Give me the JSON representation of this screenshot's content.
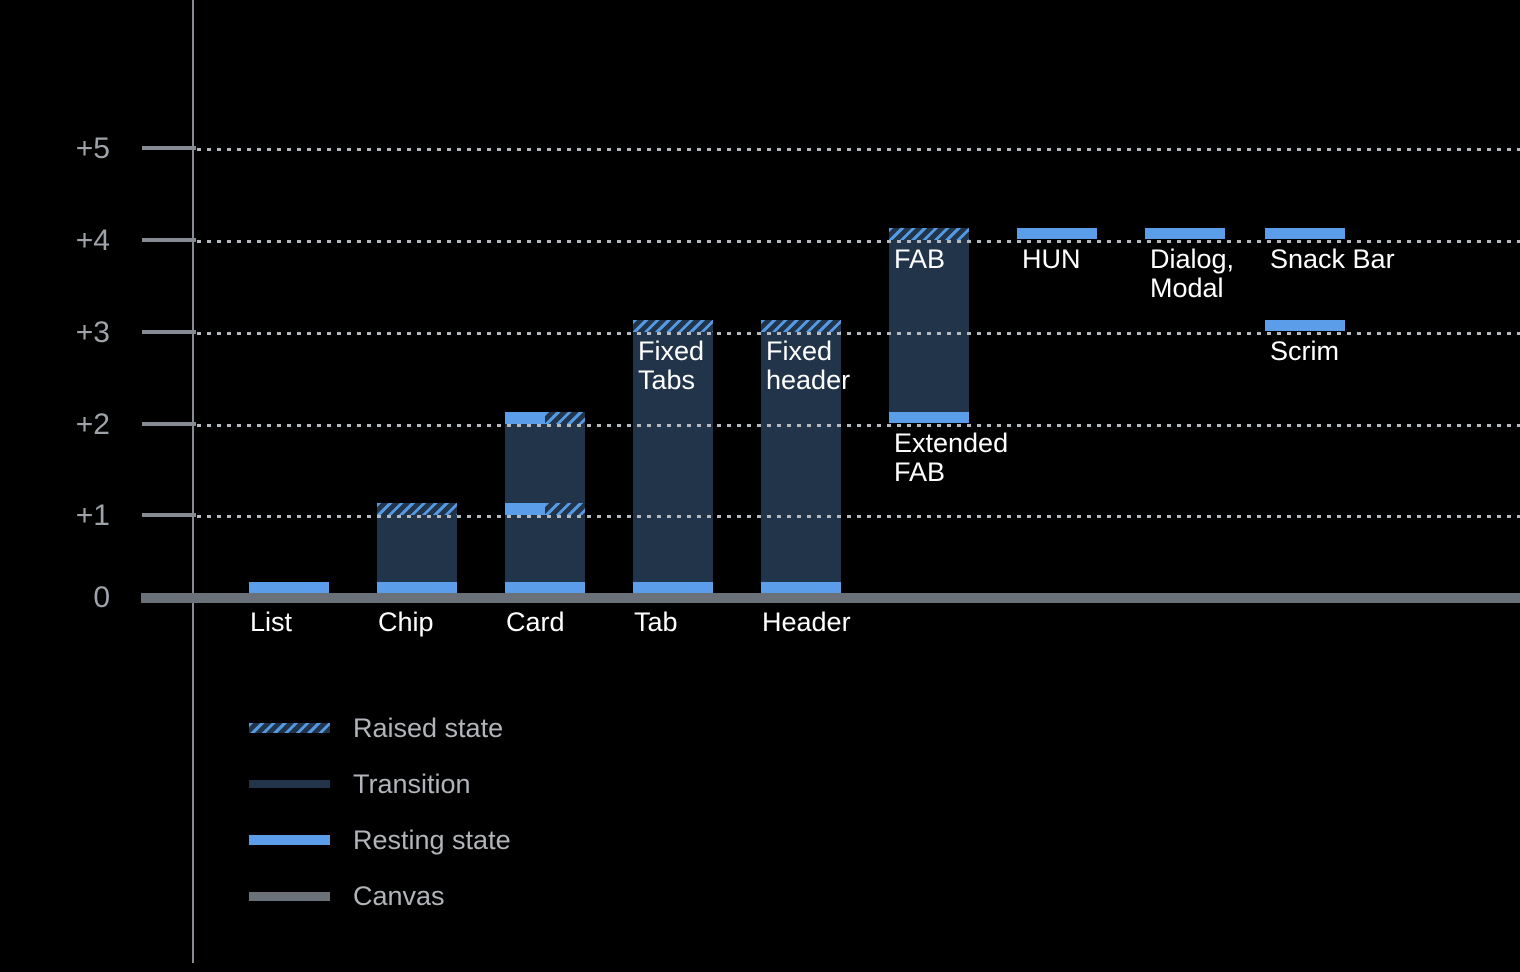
{
  "colors": {
    "background": "#000000",
    "resting_blue": "#5b9de8",
    "raised_stripe_blue": "#559ae4",
    "transition_navy": "#213449",
    "canvas_gray": "#6a7179",
    "axis_gray": "#878c94",
    "grid_dot_gray": "#b4b9bf",
    "tick_label_gray": "#9ea3a9",
    "legend_text_gray": "#b1b5ba",
    "bar_label_white": "#ffffff"
  },
  "chart_data": {
    "type": "bar",
    "title": "",
    "xlabel": "",
    "ylabel": "",
    "ylim": [
      0,
      5.5
    ],
    "grid": "horizontal dotted gridlines at +1 through +5; solid thick canvas baseline at 0",
    "legend_position": "bottom-left",
    "y_ticks": [
      {
        "label": "+5",
        "value": 5
      },
      {
        "label": "+4",
        "value": 4
      },
      {
        "label": "+3",
        "value": 3
      },
      {
        "label": "+2",
        "value": 2
      },
      {
        "label": "+1",
        "value": 1
      },
      {
        "label": "0",
        "value": 0
      }
    ],
    "columns": [
      {
        "name": "List",
        "axis_label": "List",
        "transition": null,
        "bands": [
          {
            "level": 0,
            "kind": "resting"
          }
        ]
      },
      {
        "name": "Chip",
        "axis_label": "Chip",
        "transition": [
          0,
          1
        ],
        "bands": [
          {
            "level": 0,
            "kind": "resting"
          },
          {
            "level": 1,
            "kind": "raised"
          }
        ]
      },
      {
        "name": "Card",
        "axis_label": "Card",
        "transition": [
          0,
          2
        ],
        "bands": [
          {
            "level": 0,
            "kind": "resting"
          },
          {
            "level": 1,
            "kind": "split"
          },
          {
            "level": 2,
            "kind": "split"
          }
        ]
      },
      {
        "name": "Tab",
        "axis_label": "Tab",
        "transition": [
          0,
          3
        ],
        "bands": [
          {
            "level": 0,
            "kind": "resting"
          },
          {
            "level": 3,
            "kind": "raised",
            "caption": "Fixed\nTabs"
          }
        ]
      },
      {
        "name": "Header",
        "axis_label": "Header",
        "transition": [
          0,
          3
        ],
        "bands": [
          {
            "level": 0,
            "kind": "resting"
          },
          {
            "level": 3,
            "kind": "raised",
            "caption": "Fixed\nheader"
          }
        ]
      },
      {
        "name": "FAB",
        "axis_label": "",
        "transition": [
          2,
          4
        ],
        "bands": [
          {
            "level": 2,
            "kind": "resting",
            "caption": "Extended\nFAB"
          },
          {
            "level": 4,
            "kind": "raised",
            "caption": "FAB"
          }
        ]
      },
      {
        "name": "HUN",
        "axis_label": "",
        "transition": null,
        "bands": [
          {
            "level": 4,
            "kind": "resting",
            "caption": "HUN"
          }
        ]
      },
      {
        "name": "Dialog, Modal",
        "axis_label": "",
        "transition": null,
        "bands": [
          {
            "level": 4,
            "kind": "resting",
            "caption": "Dialog,\nModal"
          }
        ]
      },
      {
        "name": "Snack Bar, Scrim",
        "axis_label": "",
        "transition": null,
        "bands": [
          {
            "level": 4,
            "kind": "resting",
            "caption": "Snack Bar"
          },
          {
            "level": 3,
            "kind": "resting",
            "caption": "Scrim"
          }
        ]
      }
    ],
    "legend": {
      "entries": [
        {
          "label": "Raised state",
          "swatch": "raised"
        },
        {
          "label": "Transition",
          "swatch": "transition"
        },
        {
          "label": "Resting state",
          "swatch": "resting"
        },
        {
          "label": "Canvas",
          "swatch": "canvas"
        }
      ]
    }
  }
}
